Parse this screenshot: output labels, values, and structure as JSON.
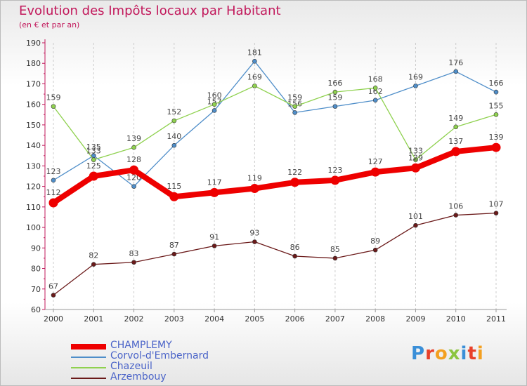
{
  "title": "Evolution des Impôts locaux par Habitant",
  "subtitle": "(en € et par an)",
  "logo": {
    "text": "Proxiti",
    "colors": [
      "#3a8fd8",
      "#e8402a",
      "#f3a020",
      "#8bc53f",
      "#3a8fd8",
      "#e8402a",
      "#f3a020"
    ]
  },
  "chart_data": {
    "type": "line",
    "x": [
      "2000",
      "2001",
      "2002",
      "2003",
      "2004",
      "2005",
      "2006",
      "2007",
      "2008",
      "2009",
      "2010",
      "2011"
    ],
    "ylim": [
      60,
      190
    ],
    "yticks": [
      "60",
      "70",
      "80",
      "90",
      "100",
      "110",
      "120",
      "130",
      "140",
      "150",
      "160",
      "170",
      "180",
      "190"
    ],
    "grid": "dashed vertical lines",
    "legend_position": "bottom-left",
    "series": [
      {
        "name": "Corvol-d'Embernard",
        "color": "#4f8ec9",
        "values": [
          123,
          135,
          120,
          140,
          157,
          181,
          156,
          159,
          162,
          169,
          176,
          166
        ]
      },
      {
        "name": "Chazeuil",
        "color": "#8fd14f",
        "values": [
          159,
          133,
          139,
          152,
          160,
          169,
          159,
          166,
          168,
          133,
          149,
          155
        ]
      },
      {
        "name": "Arzembouy",
        "color": "#6b1a1a",
        "values": [
          67,
          82,
          83,
          87,
          91,
          93,
          86,
          85,
          89,
          101,
          106,
          107
        ]
      },
      {
        "name": "CHAMPLEMY",
        "color": "#ee0000",
        "values": [
          112,
          125,
          128,
          115,
          117,
          119,
          122,
          123,
          127,
          129,
          137,
          139
        ]
      }
    ],
    "legend_order": [
      "CHAMPLEMY",
      "Corvol-d'Embernard",
      "Chazeuil",
      "Arzembouy"
    ]
  }
}
